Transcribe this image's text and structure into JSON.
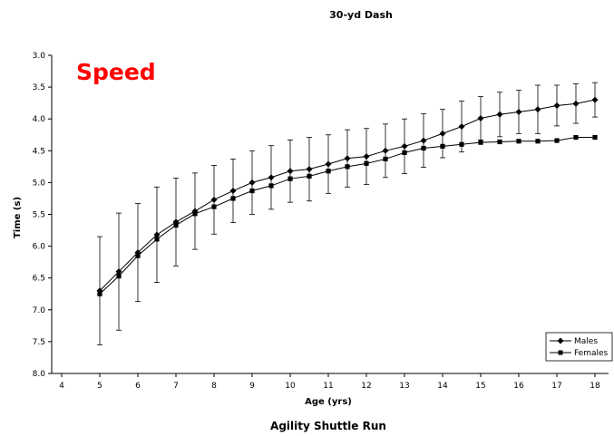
{
  "chart_data": {
    "type": "line",
    "title": "30-yd Dash",
    "xlabel": "Age (yrs)",
    "ylabel": "Time (s)",
    "footer_text": "Agility Shuttle Run",
    "annotation": {
      "text": "Speed",
      "color": "#ff0000"
    },
    "xlim": [
      4,
      18
    ],
    "ylim": [
      3.0,
      8.0
    ],
    "y_inverted": true,
    "x_ticks": [
      "4",
      "5",
      "6",
      "7",
      "8",
      "9",
      "10",
      "11",
      "12",
      "13",
      "14",
      "15",
      "16",
      "17",
      "18"
    ],
    "y_ticks": [
      "3.0",
      "3.5",
      "4.0",
      "4.5",
      "5.0",
      "5.5",
      "6.0",
      "6.5",
      "7.0",
      "7.5",
      "8.0"
    ],
    "grid": false,
    "legend_position": "bottom-right",
    "error_bars_on": "Males",
    "x": [
      5,
      5.5,
      6,
      6.5,
      7,
      7.5,
      8,
      8.5,
      9,
      9.5,
      10,
      10.5,
      11,
      11.5,
      12,
      12.5,
      13,
      13.5,
      14,
      14.5,
      15,
      15.5,
      16,
      16.5,
      17,
      17.5,
      18
    ],
    "series": [
      {
        "name": "Males",
        "marker": "diamond",
        "color": "#000000",
        "values": [
          6.7,
          6.4,
          6.1,
          5.82,
          5.62,
          5.45,
          5.27,
          5.13,
          5.0,
          4.92,
          4.82,
          4.79,
          4.71,
          4.62,
          4.59,
          4.5,
          4.43,
          4.34,
          4.23,
          4.12,
          3.99,
          3.93,
          3.89,
          3.85,
          3.79,
          3.76,
          3.7
        ],
        "error": [
          0.85,
          0.92,
          0.77,
          0.75,
          0.69,
          0.6,
          0.54,
          0.5,
          0.5,
          0.5,
          0.49,
          0.5,
          0.46,
          0.45,
          0.44,
          0.42,
          0.43,
          0.42,
          0.38,
          0.4,
          0.34,
          0.35,
          0.34,
          0.38,
          0.32,
          0.31,
          0.27
        ]
      },
      {
        "name": "Females",
        "marker": "square",
        "color": "#000000",
        "values": [
          6.75,
          6.47,
          6.15,
          5.89,
          5.67,
          5.49,
          5.38,
          5.25,
          5.13,
          5.05,
          4.94,
          4.9,
          4.82,
          4.75,
          4.7,
          4.63,
          4.53,
          4.46,
          4.43,
          4.4,
          4.37,
          4.36,
          4.35,
          4.35,
          4.34,
          4.29,
          4.29
        ]
      }
    ]
  }
}
